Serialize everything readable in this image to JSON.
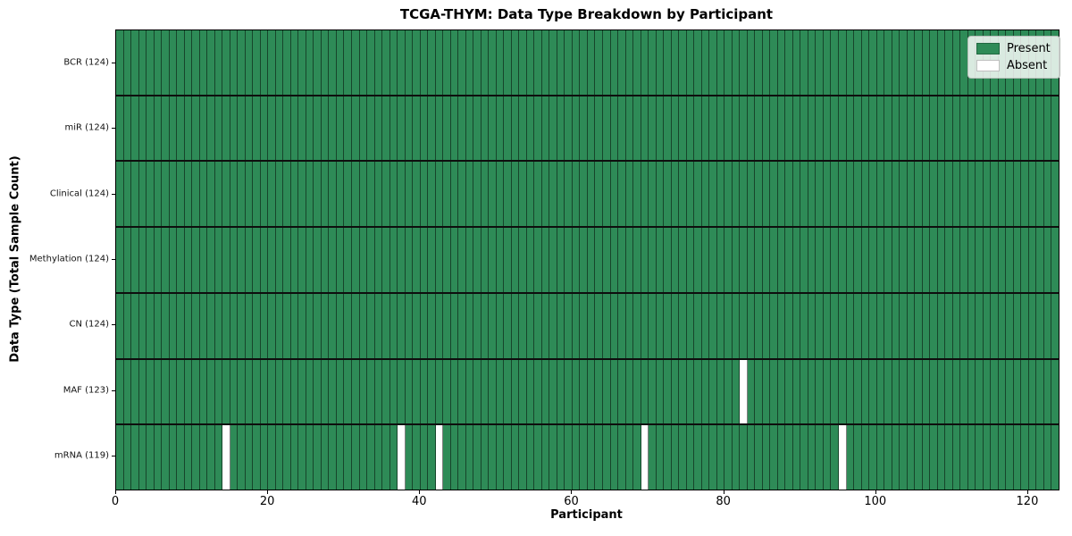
{
  "title": "TCGA-THYM: Data Type Breakdown by Participant",
  "chart_data": {
    "type": "heatmap",
    "title": "TCGA-THYM: Data Type Breakdown by Participant",
    "xlabel": "Participant",
    "ylabel": "Data Type (Total Sample Count)",
    "x_range": [
      0,
      124
    ],
    "n_participants": 124,
    "x_ticks": [
      0,
      20,
      40,
      60,
      80,
      100,
      120
    ],
    "grid": true,
    "legend_position": "upper right",
    "rows": [
      {
        "name": "BCR",
        "label": "BCR (124)",
        "present_count": 124,
        "total": 124,
        "absent_participants": []
      },
      {
        "name": "miR",
        "label": "miR (124)",
        "present_count": 124,
        "total": 124,
        "absent_participants": []
      },
      {
        "name": "Clinical",
        "label": "Clinical (124)",
        "present_count": 124,
        "total": 124,
        "absent_participants": []
      },
      {
        "name": "Methylation",
        "label": "Methylation (124)",
        "present_count": 124,
        "total": 124,
        "absent_participants": []
      },
      {
        "name": "CN",
        "label": "CN (124)",
        "present_count": 124,
        "total": 124,
        "absent_participants": []
      },
      {
        "name": "MAF",
        "label": "MAF (123)",
        "present_count": 123,
        "total": 124,
        "absent_participants": [
          82
        ]
      },
      {
        "name": "mRNA",
        "label": "mRNA (119)",
        "present_count": 119,
        "total": 124,
        "absent_participants": [
          14,
          37,
          42,
          69,
          95
        ]
      }
    ],
    "legend": [
      {
        "label": "Present",
        "color": "#2e8b57"
      },
      {
        "label": "Absent",
        "color": "#ffffff"
      }
    ],
    "colors": {
      "present": "#2e8b57",
      "absent": "#ffffff",
      "cell_grid": "rgba(0,0,0,0.5)",
      "row_separator": "#0e0e0e",
      "spine": "#000000"
    }
  }
}
